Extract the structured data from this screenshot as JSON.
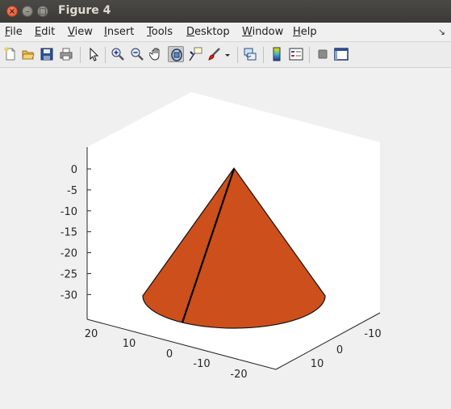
{
  "window": {
    "title": "Figure 4"
  },
  "menu": [
    {
      "label": "File",
      "key": "F",
      "rest": "ile"
    },
    {
      "label": "Edit",
      "key": "E",
      "rest": "dit"
    },
    {
      "label": "View",
      "key": "V",
      "rest": "iew"
    },
    {
      "label": "Insert",
      "key": "I",
      "rest": "nsert"
    },
    {
      "label": "Tools",
      "key": "T",
      "rest": "ools"
    },
    {
      "label": "Desktop",
      "key": "D",
      "rest": "esktop"
    },
    {
      "label": "Window",
      "key": "W",
      "rest": "indow"
    },
    {
      "label": "Help",
      "key": "H",
      "rest": "elp"
    }
  ],
  "toolbar_icons": [
    "new-figure-icon",
    "open-file-icon",
    "save-icon",
    "print-icon",
    "edit-plot-arrow-icon",
    "zoom-in-icon",
    "zoom-out-icon",
    "pan-hand-icon",
    "rotate-3d-icon",
    "data-cursor-icon",
    "brush-icon",
    "brush-dropdown-icon",
    "link-plot-icon",
    "colorbar-icon",
    "legend-icon",
    "hide-plot-tools-icon",
    "show-plot-tools-icon"
  ],
  "chart_data": {
    "type": "surface",
    "shape": "cone",
    "surface_color": "#cd4f1b",
    "z_ticks": [
      "0",
      "-5",
      "-10",
      "-15",
      "-20",
      "-25",
      "-30"
    ],
    "x_ticks": [
      "20",
      "10",
      "0",
      "-10",
      "-20"
    ],
    "y_ticks": [
      "-10",
      "0",
      "10"
    ],
    "zlim": [
      -33,
      2
    ],
    "xlim": [
      -25,
      25
    ],
    "ylim": [
      -15,
      15
    ]
  }
}
